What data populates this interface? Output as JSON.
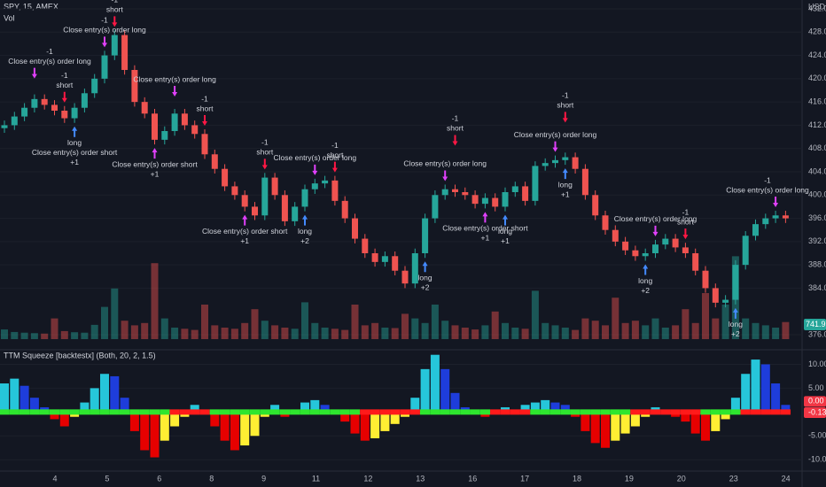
{
  "chart_data": {
    "type": "candlestick",
    "symbol": "SPY, 15, AMEX",
    "indicator": "Vol",
    "unit": "USD",
    "up_color": "#26a69a",
    "down_color": "#ef5350",
    "grid": true,
    "ylim": [
      376,
      432
    ],
    "yticks": [
      {
        "value": 432,
        "label": "432.00"
      },
      {
        "value": 428,
        "label": "428.00"
      },
      {
        "value": 424,
        "label": "424.00"
      },
      {
        "value": 420,
        "label": "420.00"
      },
      {
        "value": 416,
        "label": "416.00"
      },
      {
        "value": 412,
        "label": "412.00"
      },
      {
        "value": 408,
        "label": "408.00"
      },
      {
        "value": 404,
        "label": "404.00"
      },
      {
        "value": 400,
        "label": "400.00"
      },
      {
        "value": 396,
        "label": "396.00"
      },
      {
        "value": 392,
        "label": "392.00"
      },
      {
        "value": 388,
        "label": "388.00"
      },
      {
        "value": 384,
        "label": "384.00"
      },
      {
        "value": 376,
        "label": "376.00"
      }
    ],
    "candles": [
      [
        411.5,
        412.8,
        410.7,
        412
      ],
      [
        412,
        414.3,
        411.2,
        413.5
      ],
      [
        413.5,
        415.8,
        412.7,
        415
      ],
      [
        415,
        417.3,
        414.2,
        416.5
      ],
      [
        416.5,
        417.3,
        414.7,
        415.5
      ],
      [
        415.5,
        416.3,
        413.7,
        414.5
      ],
      [
        414.5,
        415.3,
        412.4,
        413.2
      ],
      [
        413.2,
        415.8,
        412.4,
        415
      ],
      [
        415,
        418.3,
        414.2,
        417.5
      ],
      [
        417.5,
        420.8,
        416.7,
        420
      ],
      [
        420,
        424.8,
        419.2,
        424
      ],
      [
        424,
        428.3,
        423.2,
        427.5
      ],
      [
        427.5,
        428.3,
        420.7,
        421.5
      ],
      [
        421.5,
        422.3,
        415.2,
        416
      ],
      [
        416,
        416.8,
        413.2,
        414
      ],
      [
        414,
        414.8,
        408.7,
        409.5
      ],
      [
        409.5,
        411.8,
        408.7,
        411
      ],
      [
        411,
        414.8,
        410.2,
        414
      ],
      [
        414,
        414.8,
        411.2,
        412
      ],
      [
        412,
        412.8,
        409.7,
        410.5
      ],
      [
        410.5,
        411.3,
        406.2,
        407
      ],
      [
        407,
        407.8,
        403.7,
        404.5
      ],
      [
        404.5,
        405.3,
        400.7,
        401.5
      ],
      [
        401.5,
        402.3,
        399.2,
        400
      ],
      [
        400,
        400.8,
        397.2,
        398
      ],
      [
        398,
        398.8,
        395.7,
        396.5
      ],
      [
        396.5,
        403.8,
        395.7,
        403
      ],
      [
        403,
        403.8,
        399.2,
        400
      ],
      [
        400,
        400.8,
        394.7,
        395.5
      ],
      [
        395.5,
        398.8,
        394.7,
        398
      ],
      [
        398,
        401.8,
        397.2,
        401
      ],
      [
        401,
        402.8,
        400.2,
        402
      ],
      [
        402,
        403.3,
        401.2,
        402.5
      ],
      [
        402.5,
        403.3,
        398.2,
        399
      ],
      [
        399,
        399.8,
        395.2,
        396
      ],
      [
        396,
        396.8,
        391.7,
        392.5
      ],
      [
        392.5,
        393.3,
        389.2,
        390
      ],
      [
        390,
        390.8,
        387.7,
        388.5
      ],
      [
        388.5,
        390.3,
        387.7,
        389.5
      ],
      [
        389.5,
        390.3,
        386.2,
        387
      ],
      [
        387,
        387.8,
        384,
        384.8
      ],
      [
        384.8,
        390.8,
        384,
        390
      ],
      [
        390,
        396.8,
        389.2,
        396
      ],
      [
        396,
        400.8,
        395.2,
        400
      ],
      [
        400,
        401.8,
        399.2,
        401
      ],
      [
        401,
        401.8,
        399.7,
        400.5
      ],
      [
        400.5,
        401.3,
        399.2,
        400
      ],
      [
        400,
        400.8,
        397.7,
        398.5
      ],
      [
        398.5,
        400.3,
        397.7,
        399.5
      ],
      [
        399.5,
        400.3,
        397.2,
        398
      ],
      [
        398,
        401.3,
        397.2,
        400.5
      ],
      [
        400.5,
        402.3,
        399.7,
        401.5
      ],
      [
        401.5,
        402.3,
        398.2,
        399
      ],
      [
        399,
        405.8,
        398.2,
        405
      ],
      [
        405,
        406.3,
        404.2,
        405.5
      ],
      [
        405.5,
        406.8,
        404.7,
        406
      ],
      [
        406,
        407.3,
        405.2,
        406.5
      ],
      [
        406.5,
        407.3,
        403.7,
        404.5
      ],
      [
        404.5,
        405.3,
        399.2,
        400
      ],
      [
        400,
        400.8,
        395.7,
        396.5
      ],
      [
        396.5,
        397.3,
        393.2,
        394
      ],
      [
        394,
        394.8,
        391.2,
        392
      ],
      [
        392,
        392.8,
        389.7,
        390.5
      ],
      [
        390.5,
        391.3,
        388.7,
        389.5
      ],
      [
        389.5,
        390.8,
        388.7,
        390
      ],
      [
        390,
        392.3,
        389.2,
        391.5
      ],
      [
        391.5,
        393.3,
        390.7,
        392.5
      ],
      [
        392.5,
        393.3,
        390.2,
        391
      ],
      [
        391,
        391.8,
        389.2,
        390
      ],
      [
        390,
        390.8,
        386.2,
        387
      ],
      [
        387,
        387.8,
        383.2,
        384
      ],
      [
        384,
        384.8,
        380.7,
        381.5
      ],
      [
        381.5,
        382.8,
        380.7,
        382
      ],
      [
        382,
        388.8,
        381.2,
        388
      ],
      [
        388,
        393.8,
        387.2,
        393
      ],
      [
        393,
        395.8,
        392.2,
        395
      ],
      [
        395,
        396.8,
        394.2,
        396
      ],
      [
        396,
        397.3,
        395.2,
        396.5
      ],
      [
        396.5,
        397.3,
        395.2,
        396
      ]
    ],
    "volume": [
      420,
      310,
      280,
      260,
      240,
      900,
      350,
      300,
      280,
      620,
      1400,
      2200,
      800,
      600,
      700,
      3300,
      900,
      500,
      450,
      400,
      1500,
      600,
      500,
      450,
      700,
      1300,
      800,
      600,
      500,
      450,
      1600,
      700,
      500,
      450,
      400,
      1500,
      600,
      700,
      500,
      480,
      1100,
      900,
      700,
      1500,
      800,
      600,
      500,
      420,
      600,
      1200,
      700,
      500,
      450,
      2100,
      700,
      600,
      500,
      400,
      900,
      800,
      600,
      1800,
      700,
      800,
      600,
      900,
      500,
      600,
      1300,
      700,
      2000,
      900,
      1500,
      3600,
      900,
      700,
      600,
      500,
      741.9
    ],
    "volume_label": "741.9K",
    "x_labels": [
      "4",
      "5",
      "6",
      "8",
      "9",
      "11",
      "12",
      "13",
      "16",
      "17",
      "18",
      "19",
      "20",
      "23",
      "24"
    ],
    "signal_colors": {
      "short": "#ff1744",
      "long": "#448aff",
      "close_long": "#e040fb",
      "close_short": "#e040fb"
    },
    "signals": [
      {
        "kind": "close_long",
        "lines": [
          "-1",
          "Close entry(s) order long"
        ]
      },
      {
        "kind": "short",
        "lines": [
          "-1",
          "short"
        ]
      },
      {
        "kind": "long",
        "lines": [
          "long",
          "Close entry(s) order short",
          "+1"
        ]
      },
      {
        "kind": "close_long",
        "lines": [
          "-1",
          "Close entry(s) order long"
        ]
      },
      {
        "kind": "short",
        "lines": [
          "-1",
          "short"
        ]
      },
      {
        "kind": "close_short",
        "lines": [
          "Close entry(s) order short",
          "+1"
        ]
      },
      {
        "kind": "close_long",
        "lines": [
          "Close entry(s) order long"
        ]
      },
      {
        "kind": "short",
        "lines": [
          "-1",
          "short"
        ]
      },
      {
        "kind": "close_short",
        "lines": [
          "Close entry(s) order short",
          "+1"
        ]
      },
      {
        "kind": "short",
        "lines": [
          "-1",
          "short"
        ]
      },
      {
        "kind": "long",
        "lines": [
          "long",
          "+2"
        ]
      },
      {
        "kind": "close_long",
        "lines": [
          "Close entry(s) order long"
        ]
      },
      {
        "kind": "short",
        "lines": [
          "-1",
          "short"
        ]
      },
      {
        "kind": "long",
        "lines": [
          "long",
          "+2"
        ]
      },
      {
        "kind": "close_long",
        "lines": [
          "Close entry(s) order long"
        ]
      },
      {
        "kind": "short",
        "lines": [
          "-1",
          "short"
        ]
      },
      {
        "kind": "close_short",
        "lines": [
          "Close entry(s) order short",
          "+1"
        ]
      },
      {
        "kind": "long",
        "lines": [
          "long",
          "+1"
        ]
      },
      {
        "kind": "close_long",
        "lines": [
          "Close entry(s) order long"
        ]
      },
      {
        "kind": "short",
        "lines": [
          "-1",
          "short"
        ]
      },
      {
        "kind": "long",
        "lines": [
          "long",
          "+1"
        ]
      },
      {
        "kind": "close_long",
        "lines": [
          "Close entry(s) order long"
        ]
      },
      {
        "kind": "long",
        "lines": [
          "long",
          "+2"
        ]
      },
      {
        "kind": "short",
        "lines": [
          "-1",
          "short"
        ]
      },
      {
        "kind": "long",
        "lines": [
          "long",
          "+2"
        ]
      },
      {
        "kind": "close_long",
        "lines": [
          "-1",
          "Close entry(s) order long"
        ]
      }
    ],
    "squeeze": {
      "title": "TTM Squeeze [backtestx] (Both, 20, 2, 1.5)",
      "ylim": [
        -12,
        12.5
      ],
      "yticks": [
        {
          "value": 10,
          "label": "10.00"
        },
        {
          "value": 5,
          "label": "5.00"
        },
        {
          "value": -5,
          "label": "-5.00"
        },
        {
          "value": -10,
          "label": "-10.00"
        }
      ],
      "colors": {
        "up_positive": "#26c6da",
        "down_positive": "#1e3ddb",
        "down_negative": "#e60000",
        "up_negative": "#ffee33",
        "dot_off": "#2ee62e",
        "dot_on": "#ff1a1a"
      },
      "values": [
        6,
        7,
        5.5,
        3,
        1,
        -1.5,
        -3,
        -1,
        2,
        5,
        8,
        7.5,
        3,
        -4,
        -8,
        -9.5,
        -6,
        -3,
        -1,
        1.5,
        0.5,
        -3,
        -6,
        -8,
        -7,
        -5,
        -1,
        1.5,
        -1,
        0.5,
        2,
        2.5,
        1.5,
        -0.5,
        -2,
        -4.5,
        -6,
        -5.5,
        -4,
        -2.5,
        -1,
        3,
        9,
        12,
        9,
        4,
        1,
        -0.5,
        -1,
        0.5,
        1,
        -0.5,
        1.5,
        2,
        2.5,
        2,
        1.5,
        -1,
        -4,
        -6.5,
        -7.5,
        -6,
        -4.5,
        -3,
        -1,
        1,
        0.5,
        -1,
        -2,
        -4.5,
        -6,
        -4,
        -1.5,
        3,
        8,
        11,
        10,
        6,
        1.5
      ],
      "squeeze_on": [
        0,
        0,
        0,
        0,
        0,
        0,
        0,
        0,
        0,
        0,
        0,
        0,
        0,
        0,
        0,
        0,
        0,
        1,
        1,
        1,
        1,
        0,
        0,
        0,
        0,
        0,
        0,
        0,
        0,
        0,
        0,
        0,
        0,
        0,
        0,
        0,
        1,
        1,
        1,
        1,
        1,
        1,
        0,
        0,
        0,
        0,
        0,
        0,
        0,
        1,
        1,
        1,
        1,
        0,
        0,
        0,
        0,
        0,
        0,
        0,
        0,
        0,
        0,
        1,
        1,
        1,
        1,
        1,
        1,
        1,
        0,
        0,
        0,
        0,
        1,
        1,
        1,
        1,
        1
      ],
      "last_labels": [
        {
          "value": 0,
          "label": "0.00"
        },
        {
          "value": -0.13,
          "label": "-0.13"
        }
      ]
    }
  }
}
